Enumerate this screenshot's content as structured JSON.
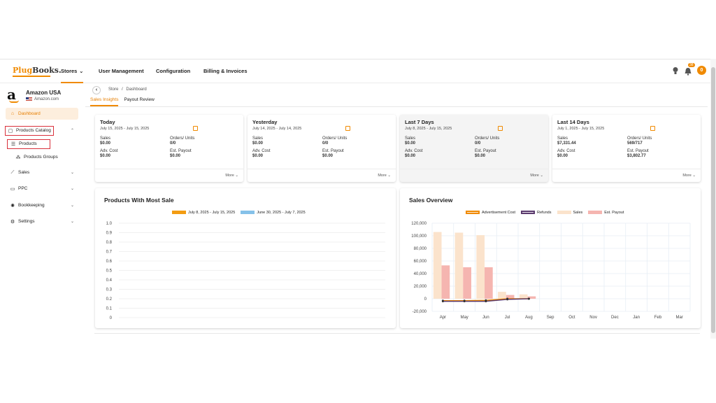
{
  "nav": {
    "logo_prefix": "Plug",
    "logo_suffix": "Books.",
    "items": [
      "Stores",
      "User Management",
      "Configuration",
      "Billing & Invoices"
    ],
    "notif_count": "38",
    "avatar_letter": "0"
  },
  "sidebar": {
    "store_name": "Amazon USA",
    "store_domain": "Amazon.com",
    "items": {
      "dashboard": "Dashboard",
      "products_catalog": "Products Catalog",
      "products": "Products",
      "products_groups": "Products Groups",
      "sales": "Sales",
      "ppc": "PPC",
      "bookkeeping": "Bookkeeping",
      "settings": "Settings"
    }
  },
  "breadcrumb": {
    "store": "Store",
    "sep": "/",
    "page": "Dashboard"
  },
  "tabs": [
    "Sales Insights",
    "Payout Review"
  ],
  "labels": {
    "sales": "Sales",
    "orders": "Orders/ Units",
    "adv": "Adv. Cost",
    "payout": "Est. Payout",
    "more": "More"
  },
  "cards": [
    {
      "title": "Today",
      "date": "July 15, 2025 - July 15, 2025",
      "sales": "$0.00",
      "orders": "0/0",
      "adv": "$0.00",
      "payout": "$0.00"
    },
    {
      "title": "Yesterday",
      "date": "July 14, 2025 - July 14, 2025",
      "sales": "$0.00",
      "orders": "0/0",
      "adv": "$0.00",
      "payout": "$0.00"
    },
    {
      "title": "Last 7 Days",
      "date": "July 8, 2025 - July 15, 2025",
      "sales": "$0.00",
      "orders": "0/0",
      "adv": "$0.00",
      "payout": "$0.00"
    },
    {
      "title": "Last 14 Days",
      "date": "July 1, 2025 - July 15, 2025",
      "sales": "$7,331.44",
      "orders": "569/717",
      "adv": "$0.00",
      "payout": "$3,802.77"
    }
  ],
  "colors": {
    "accent": "#f08a00",
    "series1": "#f39c12",
    "series2": "#85c1e9",
    "sales": "#fbe3cc",
    "payout": "#f5b5b0",
    "adv": "#f08a00",
    "refunds": "#5b3b6e"
  },
  "chart_data": [
    {
      "type": "line",
      "title": "Products With Most Sale",
      "series": [
        {
          "name": "July 8, 2025 - July 15, 2025",
          "values": []
        },
        {
          "name": "June 30, 2025 - July 7, 2025",
          "values": []
        }
      ],
      "yticks": [
        "1.0",
        "0.9",
        "0.8",
        "0.7",
        "0.6",
        "0.5",
        "0.4",
        "0.3",
        "0.2",
        "0.1",
        "0"
      ],
      "ylim": [
        0,
        1.0
      ],
      "grid": true,
      "legend": "top"
    },
    {
      "type": "bar",
      "title": "Sales Overview",
      "categories": [
        "Apr",
        "May",
        "Jun",
        "Jul",
        "Aug",
        "Sep",
        "Oct",
        "Nov",
        "Dec",
        "Jan",
        "Feb",
        "Mar"
      ],
      "yticks": [
        "120,000",
        "100,000",
        "80,000",
        "60,000",
        "40,000",
        "20,000",
        "0",
        "-20,000"
      ],
      "ylim": [
        -20000,
        120000
      ],
      "series": [
        {
          "name": "Sales",
          "kind": "bar",
          "values": [
            106000,
            105000,
            101000,
            11000,
            7000,
            null,
            null,
            null,
            null,
            null,
            null,
            null
          ]
        },
        {
          "name": "Est. Payout",
          "kind": "bar",
          "values": [
            53000,
            50000,
            50000,
            6000,
            3800,
            null,
            null,
            null,
            null,
            null,
            null,
            null
          ]
        },
        {
          "name": "Advertisement Cost",
          "kind": "line",
          "values": [
            -3000,
            -3000,
            -2500,
            0,
            0,
            null,
            null,
            null,
            null,
            null,
            null,
            null
          ]
        },
        {
          "name": "Refunds",
          "kind": "line",
          "values": [
            -4000,
            -4000,
            -4000,
            -1000,
            0,
            null,
            null,
            null,
            null,
            null,
            null,
            null
          ]
        }
      ],
      "grid": true,
      "legend": "top"
    }
  ]
}
